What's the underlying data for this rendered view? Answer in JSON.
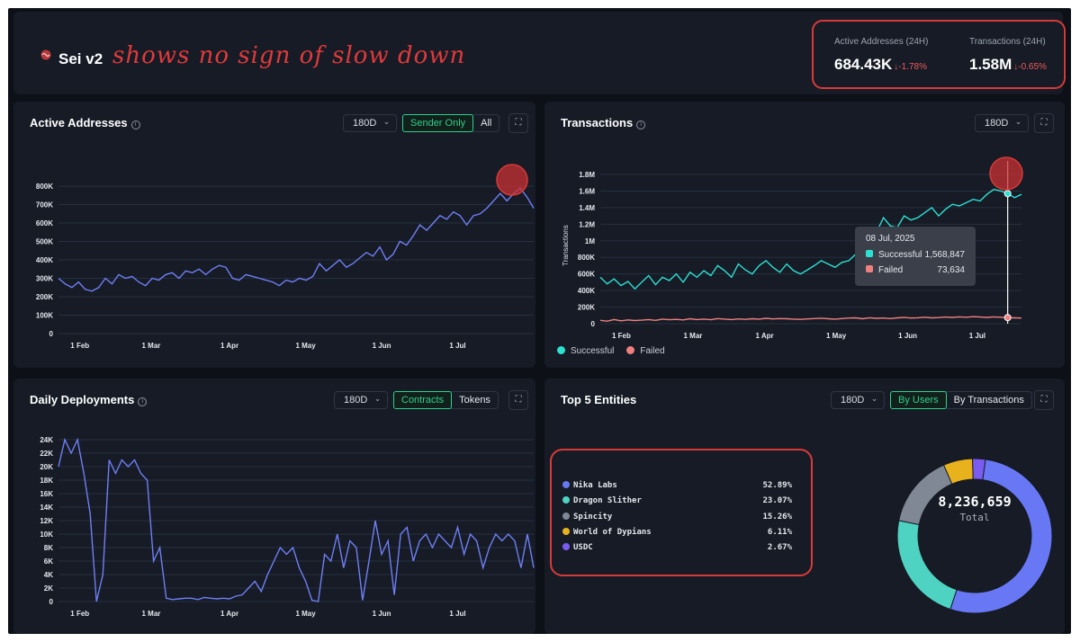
{
  "header": {
    "title": "Sei v2",
    "annotation": "shows no sign of slow down",
    "kpis": [
      {
        "label": "Active Addresses (24H)",
        "value": "684.43K",
        "change": "-1.78%"
      },
      {
        "label": "Transactions (24H)",
        "value": "1.58M",
        "change": "-0.65%"
      }
    ]
  },
  "panels": {
    "active": {
      "title": "Active Addresses",
      "range": "180D",
      "toggle": [
        "Sender Only",
        "All"
      ],
      "active_toggle": "Sender Only"
    },
    "transactions": {
      "title": "Transactions",
      "range": "180D",
      "y_axis_label": "Transactions",
      "legend": [
        "Successful",
        "Failed"
      ],
      "tooltip": {
        "date": "08 Jul, 2025",
        "rows": [
          {
            "label": "Successful",
            "value": "1,568,847",
            "color": "#2de0d2"
          },
          {
            "label": "Failed",
            "value": "73,634",
            "color": "#f08080"
          }
        ]
      }
    },
    "deployments": {
      "title": "Daily Deployments",
      "range": "180D",
      "toggle": [
        "Contracts",
        "Tokens"
      ],
      "active_toggle": "Contracts"
    },
    "entities": {
      "title": "Top 5 Entities",
      "range": "180D",
      "toggle": [
        "By Users",
        "By Transactions"
      ],
      "active_toggle": "By Users",
      "total": "8,236,659",
      "total_label": "Total"
    }
  },
  "chart_data": [
    {
      "type": "line",
      "title": "Active Addresses",
      "ylim": [
        0,
        800000
      ],
      "y_ticks": [
        "0",
        "100K",
        "200K",
        "300K",
        "400K",
        "500K",
        "600K",
        "700K",
        "800K"
      ],
      "x_ticks": [
        "1 Feb",
        "1 Mar",
        "1 Apr",
        "1 May",
        "1 Jun",
        "1 Jul"
      ],
      "series": [
        {
          "color": "#6f7ff5",
          "values": [
            300000,
            270000,
            250000,
            280000,
            240000,
            230000,
            250000,
            300000,
            270000,
            320000,
            300000,
            310000,
            280000,
            260000,
            300000,
            290000,
            320000,
            330000,
            300000,
            340000,
            330000,
            350000,
            320000,
            350000,
            370000,
            360000,
            300000,
            290000,
            320000,
            310000,
            300000,
            290000,
            280000,
            260000,
            290000,
            280000,
            300000,
            290000,
            310000,
            380000,
            340000,
            370000,
            400000,
            360000,
            380000,
            410000,
            440000,
            420000,
            470000,
            400000,
            430000,
            500000,
            480000,
            530000,
            590000,
            560000,
            600000,
            640000,
            620000,
            660000,
            640000,
            590000,
            640000,
            650000,
            680000,
            720000,
            760000,
            720000,
            760000,
            790000,
            740000,
            680000
          ]
        }
      ]
    },
    {
      "type": "line",
      "title": "Transactions",
      "ylabel": "Transactions",
      "ylim": [
        0,
        1800000
      ],
      "y_ticks": [
        "0",
        "200K",
        "400K",
        "600K",
        "800K",
        "1M",
        "1.2M",
        "1.4M",
        "1.6M",
        "1.8M"
      ],
      "x_ticks": [
        "1 Feb",
        "1 Mar",
        "1 Apr",
        "1 May",
        "1 Jun",
        "1 Jul"
      ],
      "series": [
        {
          "name": "Successful",
          "color": "#2de0d2",
          "values": [
            560000,
            480000,
            540000,
            460000,
            510000,
            420000,
            500000,
            580000,
            470000,
            560000,
            520000,
            600000,
            500000,
            620000,
            560000,
            640000,
            580000,
            700000,
            640000,
            560000,
            720000,
            650000,
            600000,
            700000,
            760000,
            680000,
            620000,
            720000,
            640000,
            600000,
            650000,
            700000,
            760000,
            720000,
            680000,
            740000,
            760000,
            840000,
            900000,
            980000,
            1100000,
            1280000,
            1180000,
            1160000,
            1300000,
            1250000,
            1280000,
            1340000,
            1400000,
            1300000,
            1380000,
            1440000,
            1420000,
            1460000,
            1500000,
            1480000,
            1560000,
            1620000,
            1600000,
            1568847,
            1520000,
            1560000
          ]
        },
        {
          "name": "Failed",
          "color": "#f08080",
          "values": [
            40000,
            30000,
            50000,
            35000,
            45000,
            38000,
            42000,
            50000,
            40000,
            55000,
            48000,
            52000,
            45000,
            60000,
            50000,
            55000,
            48000,
            62000,
            55000,
            50000,
            58000,
            52000,
            60000,
            55000,
            65000,
            58000,
            62000,
            60000,
            55000,
            52000,
            58000,
            62000,
            66000,
            60000,
            55000,
            62000,
            68000,
            70000,
            60000,
            72000,
            65000,
            68000,
            62000,
            70000,
            75000,
            68000,
            72000,
            78000,
            70000,
            74000,
            80000,
            76000,
            82000,
            78000,
            85000,
            80000,
            76000,
            82000,
            78000,
            73634,
            70000,
            68000
          ]
        }
      ]
    },
    {
      "type": "line",
      "title": "Daily Deployments",
      "ylim": [
        0,
        24000
      ],
      "y_ticks": [
        "0",
        "2K",
        "4K",
        "6K",
        "8K",
        "10K",
        "12K",
        "14K",
        "16K",
        "18K",
        "20K",
        "22K",
        "24K"
      ],
      "x_ticks": [
        "1 Feb",
        "1 Mar",
        "1 Apr",
        "1 May",
        "1 Jun",
        "1 Jul"
      ],
      "series": [
        {
          "color": "#6f7ff5",
          "values": [
            20000,
            24000,
            22000,
            24000,
            19000,
            13000,
            0,
            4000,
            21000,
            19000,
            21000,
            20000,
            21000,
            19000,
            18000,
            6000,
            8000,
            500,
            300,
            400,
            500,
            500,
            300,
            600,
            500,
            400,
            500,
            400,
            800,
            1000,
            2000,
            3000,
            1500,
            4000,
            6000,
            8000,
            7000,
            8000,
            5000,
            3000,
            200,
            0,
            7000,
            6000,
            10000,
            5000,
            9000,
            8000,
            200,
            6000,
            12000,
            7000,
            9000,
            1000,
            10000,
            11000,
            6000,
            9000,
            10000,
            8000,
            10000,
            9000,
            8000,
            11000,
            7000,
            10000,
            9000,
            5000,
            8000,
            10000,
            9000,
            10000,
            9000,
            5000,
            10000,
            5000
          ]
        }
      ]
    },
    {
      "type": "pie",
      "title": "Top 5 Entities",
      "categories": [
        "Nika Labs",
        "Dragon Slither",
        "Spincity",
        "World of Dypians",
        "USDC"
      ],
      "values": [
        52.89,
        23.07,
        15.26,
        6.11,
        2.67
      ],
      "labels": [
        "52.89%",
        "23.07%",
        "15.26%",
        "6.11%",
        "2.67%"
      ],
      "colors": [
        "#6878f5",
        "#4ed3c2",
        "#7f8894",
        "#e8b21c",
        "#7a5cf0"
      ]
    }
  ]
}
